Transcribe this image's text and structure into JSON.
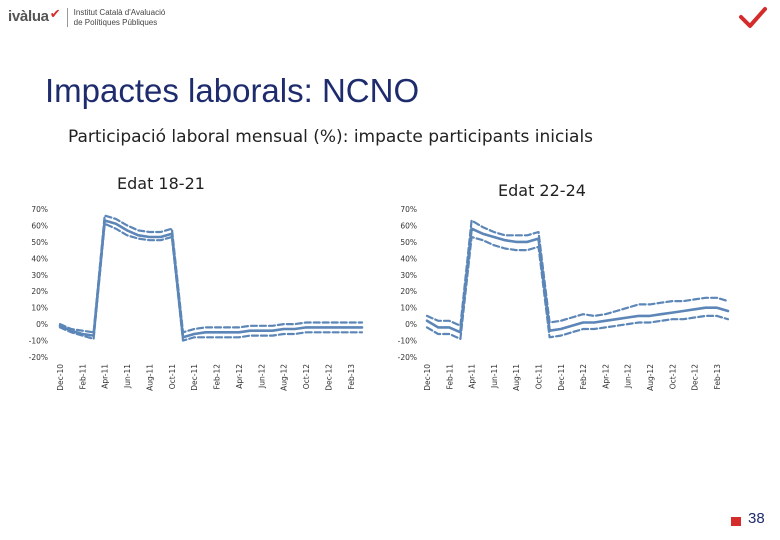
{
  "header": {
    "logo_word": "ivàlua",
    "logo_lines": [
      "Institut Català d'Avaluació",
      "de Polítiques Públiques"
    ]
  },
  "slide": {
    "title": "Impactes laborals: NCNO",
    "subtitle": "Participació laboral mensual (%): impacte participants inicials",
    "page_number": "38"
  },
  "colors": {
    "series": "#5b86b7",
    "title": "#1e2c6e",
    "accent": "#d42b2b"
  },
  "chart_data": [
    {
      "type": "line",
      "title": "Edat 18-21",
      "ylim": [
        -20,
        70
      ],
      "y_ticks": [
        -20,
        -10,
        0,
        10,
        20,
        30,
        40,
        50,
        60,
        70
      ],
      "y_tick_labels": [
        "-20%",
        "-10%",
        "0%",
        "10%",
        "20%",
        "30%",
        "40%",
        "50%",
        "60%",
        "70%"
      ],
      "x_tick_labels": [
        "Dec-10",
        "Feb-11",
        "Apr-11",
        "Jun-11",
        "Aug-11",
        "Oct-11",
        "Dec-11",
        "Feb-12",
        "Apr-12",
        "Jun-12",
        "Aug-12",
        "Oct-12",
        "Dec-12",
        "Feb-13"
      ],
      "x": [
        "Dec-10",
        "Jan-11",
        "Feb-11",
        "Mar-11",
        "Apr-11",
        "May-11",
        "Jun-11",
        "Jul-11",
        "Aug-11",
        "Sep-11",
        "Oct-11",
        "Nov-11",
        "Dec-11",
        "Jan-12",
        "Feb-12",
        "Mar-12",
        "Apr-12",
        "May-12",
        "Jun-12",
        "Jul-12",
        "Aug-12",
        "Sep-12",
        "Oct-12",
        "Nov-12",
        "Dec-12",
        "Jan-13",
        "Feb-13",
        "Mar-13"
      ],
      "series": [
        {
          "style": "dashed",
          "values": [
            0,
            -3,
            -4,
            -5,
            66,
            64,
            60,
            57,
            56,
            56,
            58,
            -5,
            -3,
            -2,
            -2,
            -2,
            -2,
            -1,
            -1,
            -1,
            0,
            0,
            1,
            1,
            1,
            1,
            1,
            1
          ]
        },
        {
          "style": "solid",
          "values": [
            -1,
            -4,
            -6,
            -7,
            63,
            61,
            57,
            54,
            53,
            53,
            55,
            -8,
            -6,
            -5,
            -5,
            -5,
            -5,
            -4,
            -4,
            -4,
            -3,
            -3,
            -2,
            -2,
            -2,
            -2,
            -2,
            -2
          ]
        },
        {
          "style": "dashed",
          "values": [
            -2,
            -5,
            -7,
            -9,
            61,
            58,
            54,
            52,
            51,
            51,
            53,
            -10,
            -8,
            -8,
            -8,
            -8,
            -8,
            -7,
            -7,
            -7,
            -6,
            -6,
            -5,
            -5,
            -5,
            -5,
            -5,
            -5
          ]
        }
      ]
    },
    {
      "type": "line",
      "title": "Edat 22-24",
      "ylim": [
        -20,
        70
      ],
      "y_ticks": [
        -20,
        -10,
        0,
        10,
        20,
        30,
        40,
        50,
        60,
        70
      ],
      "y_tick_labels": [
        "-20%",
        "-10%",
        "0%",
        "10%",
        "20%",
        "30%",
        "40%",
        "50%",
        "60%",
        "70%"
      ],
      "x_tick_labels": [
        "Dec-10",
        "Feb-11",
        "Apr-11",
        "Jun-11",
        "Aug-11",
        "Oct-11",
        "Dec-11",
        "Feb-12",
        "Apr-12",
        "Jun-12",
        "Aug-12",
        "Oct-12",
        "Dec-12",
        "Feb-13"
      ],
      "x": [
        "Dec-10",
        "Jan-11",
        "Feb-11",
        "Mar-11",
        "Apr-11",
        "May-11",
        "Jun-11",
        "Jul-11",
        "Aug-11",
        "Sep-11",
        "Oct-11",
        "Nov-11",
        "Dec-11",
        "Jan-12",
        "Feb-12",
        "Mar-12",
        "Apr-12",
        "May-12",
        "Jun-12",
        "Jul-12",
        "Aug-12",
        "Sep-12",
        "Oct-12",
        "Nov-12",
        "Dec-12",
        "Jan-13",
        "Feb-13",
        "Mar-13"
      ],
      "series": [
        {
          "style": "dashed",
          "values": [
            5,
            2,
            2,
            -1,
            63,
            59,
            56,
            54,
            54,
            54,
            56,
            1,
            2,
            4,
            6,
            5,
            6,
            8,
            10,
            12,
            12,
            13,
            14,
            14,
            15,
            16,
            16,
            14
          ]
        },
        {
          "style": "solid",
          "values": [
            2,
            -2,
            -2,
            -5,
            58,
            55,
            53,
            51,
            50,
            50,
            52,
            -4,
            -3,
            -1,
            1,
            1,
            2,
            3,
            4,
            5,
            5,
            6,
            7,
            8,
            9,
            10,
            10,
            8
          ]
        },
        {
          "style": "dashed",
          "values": [
            -2,
            -6,
            -6,
            -9,
            53,
            51,
            48,
            46,
            45,
            45,
            47,
            -8,
            -7,
            -5,
            -3,
            -3,
            -2,
            -1,
            0,
            1,
            1,
            2,
            3,
            3,
            4,
            5,
            5,
            3
          ]
        }
      ]
    }
  ]
}
